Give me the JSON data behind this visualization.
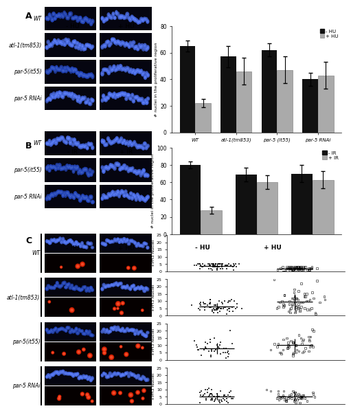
{
  "bar_A_categories": [
    "WT",
    "atl-1(tm853)",
    "par-5 (it55)",
    "par-5 RNAi"
  ],
  "bar_A_minus": [
    65,
    57,
    62,
    40
  ],
  "bar_A_minus_err": [
    4,
    8,
    5,
    5
  ],
  "bar_A_plus": [
    22,
    46,
    47,
    43
  ],
  "bar_A_plus_err": [
    3,
    10,
    10,
    10
  ],
  "bar_B_categories": [
    "WT",
    "par-5(it55)",
    "par-5 RNAi"
  ],
  "bar_B_minus": [
    80,
    69,
    70
  ],
  "bar_B_minus_err": [
    4,
    8,
    10
  ],
  "bar_B_plus": [
    28,
    60,
    63
  ],
  "bar_B_plus_err": [
    4,
    8,
    10
  ],
  "ylabel_AB": "# nuclei in the proliferative region",
  "color_minus": "#111111",
  "color_plus": "#aaaaaa",
  "row_labels_A": [
    "WT",
    "atl-1(tm853)",
    "par-5(it55)",
    "par-5 RNAi"
  ],
  "row_labels_B": [
    "WT",
    "par-5(it55)",
    "par-5 RNAi"
  ],
  "row_labels_C": [
    "WT",
    "atl-1(tm853)",
    "par-5(it55)",
    "par-5 RNAi"
  ],
  "scatter_C_minus_WT": [
    1,
    1,
    1,
    2,
    2,
    2,
    2,
    2,
    2,
    2,
    2,
    3,
    3,
    3,
    3,
    3,
    3,
    3,
    3,
    3,
    3,
    3,
    3,
    3,
    3,
    3,
    3,
    4,
    4,
    4,
    4,
    4,
    4,
    4,
    4,
    4,
    4,
    4,
    4,
    4,
    4,
    4,
    5,
    5,
    5,
    5,
    5,
    5,
    5,
    5,
    5,
    5,
    5,
    5,
    5,
    5,
    5,
    5,
    5,
    5,
    5,
    5,
    5,
    5,
    5,
    5
  ],
  "scatter_C_plus_WT": [
    0,
    0,
    0,
    0,
    0,
    1,
    1,
    1,
    1,
    1,
    1,
    1,
    1,
    1,
    1,
    1,
    1,
    1,
    1,
    1,
    1,
    1,
    2,
    2,
    2,
    2,
    2,
    2,
    2,
    2,
    2,
    2,
    2,
    2,
    2,
    2,
    2,
    2,
    2,
    2,
    2,
    2,
    2,
    2,
    3,
    3,
    3,
    3,
    3,
    3,
    3,
    3,
    3,
    3,
    3,
    3,
    3,
    3,
    3,
    3,
    3,
    3,
    3,
    3,
    3
  ],
  "scatter_C_minus_atl1": [
    1,
    2,
    2,
    3,
    3,
    3,
    3,
    4,
    4,
    4,
    4,
    4,
    4,
    4,
    5,
    5,
    5,
    5,
    5,
    5,
    5,
    5,
    5,
    5,
    5,
    5,
    5,
    6,
    6,
    6,
    6,
    6,
    6,
    6,
    6,
    6,
    6,
    7,
    7,
    7,
    7,
    7,
    7,
    8,
    8,
    8,
    8,
    8,
    8,
    8,
    9,
    9,
    9,
    9,
    9,
    10,
    10,
    10,
    10,
    10,
    11,
    11,
    11
  ],
  "scatter_C_plus_atl1": [
    1,
    2,
    2,
    2,
    3,
    3,
    3,
    4,
    4,
    4,
    4,
    4,
    5,
    5,
    5,
    5,
    5,
    6,
    6,
    6,
    6,
    6,
    7,
    7,
    7,
    8,
    8,
    8,
    8,
    9,
    9,
    9,
    9,
    9,
    10,
    10,
    10,
    10,
    11,
    11,
    11,
    11,
    12,
    12,
    12,
    12,
    12,
    13,
    13,
    13,
    13,
    14,
    14,
    15,
    15,
    16,
    16,
    17,
    18,
    22,
    24,
    25
  ],
  "scatter_C_minus_par5": [
    1,
    2,
    2,
    3,
    3,
    4,
    4,
    5,
    5,
    5,
    6,
    6,
    6,
    6,
    7,
    7,
    7,
    7,
    7,
    8,
    8,
    8,
    8,
    8,
    9,
    9,
    9,
    10,
    10,
    10,
    11,
    11,
    12,
    12,
    12,
    13,
    14,
    15,
    20
  ],
  "scatter_C_plus_par5": [
    3,
    4,
    4,
    4,
    5,
    5,
    5,
    5,
    5,
    6,
    6,
    6,
    7,
    7,
    7,
    8,
    8,
    8,
    9,
    9,
    9,
    9,
    10,
    10,
    10,
    10,
    11,
    11,
    11,
    12,
    12,
    12,
    12,
    13,
    13,
    13,
    14,
    14,
    14,
    15,
    15,
    16,
    16,
    17,
    20,
    21
  ],
  "scatter_C_minus_rnai": [
    1,
    1,
    1,
    2,
    2,
    2,
    2,
    3,
    3,
    3,
    3,
    3,
    3,
    3,
    4,
    4,
    4,
    4,
    4,
    4,
    4,
    4,
    5,
    5,
    5,
    5,
    5,
    5,
    5,
    5,
    5,
    5,
    6,
    6,
    6,
    6,
    6,
    6,
    6,
    7,
    7,
    7,
    7,
    7,
    8,
    8,
    8,
    9,
    9,
    9,
    10,
    10,
    10,
    11
  ],
  "scatter_C_plus_rnai": [
    1,
    1,
    2,
    2,
    2,
    2,
    3,
    3,
    3,
    3,
    3,
    3,
    4,
    4,
    4,
    4,
    4,
    4,
    4,
    4,
    5,
    5,
    5,
    5,
    5,
    5,
    5,
    5,
    5,
    6,
    6,
    6,
    6,
    6,
    6,
    6,
    7,
    7,
    7,
    7,
    8,
    8,
    8,
    8,
    9,
    9,
    9,
    9,
    10
  ],
  "scatter_C_ylim": 25
}
